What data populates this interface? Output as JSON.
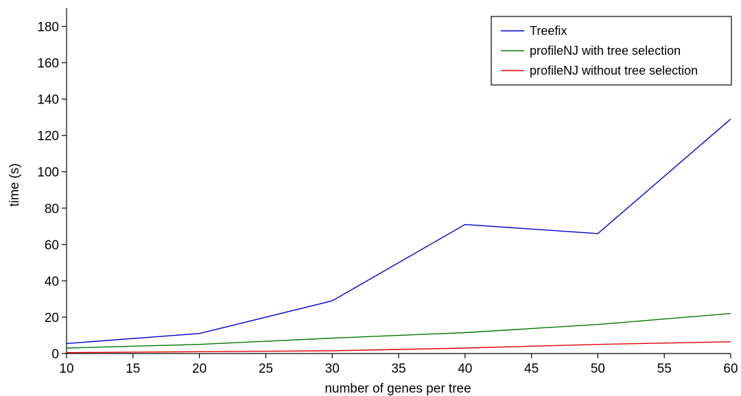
{
  "chart_data": {
    "type": "line",
    "title": "",
    "xlabel": "number of genes per tree",
    "ylabel": "time (s)",
    "x": [
      10,
      20,
      30,
      40,
      50,
      60
    ],
    "xlim": [
      10,
      60
    ],
    "ylim": [
      0,
      190
    ],
    "xticks": [
      10,
      15,
      20,
      25,
      30,
      35,
      40,
      45,
      50,
      55,
      60
    ],
    "yticks": [
      0,
      20,
      40,
      60,
      80,
      100,
      120,
      140,
      160,
      180
    ],
    "grid": false,
    "legend_position": "top-right",
    "series": [
      {
        "name": "Treefix",
        "color": "#0000cc",
        "values": [
          5.5,
          11,
          29,
          71,
          66,
          129
        ]
      },
      {
        "name": "profileNJ with tree selection",
        "color": "#007700",
        "values": [
          3,
          5,
          8.5,
          11.5,
          16,
          22
        ]
      },
      {
        "name": "profileNJ without tree selection",
        "color": "#dd0000",
        "values": [
          0.5,
          1,
          1.5,
          3,
          5,
          6.5
        ]
      }
    ]
  }
}
